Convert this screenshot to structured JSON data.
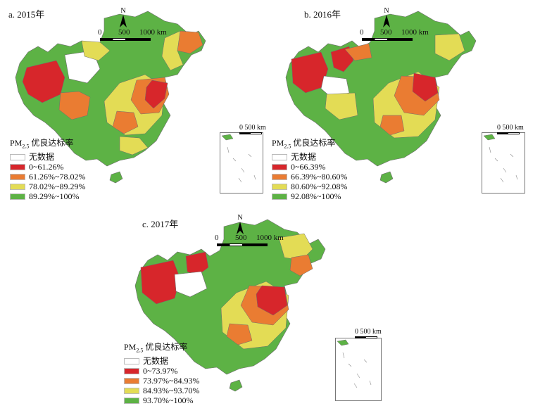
{
  "legend_title_prefix": "PM",
  "legend_title_sub": "2.5",
  "legend_title_suffix": "优良达标率",
  "north_label": "N",
  "colors": {
    "no_data": "#ffffff",
    "class1": "#d7262b",
    "class2": "#ea7c32",
    "class3": "#e3dc55",
    "class4": "#5db245",
    "boundary": "#6e6e6e"
  },
  "panels": [
    {
      "title": "a. 2015年",
      "scale": {
        "zero": "0",
        "mid": "500",
        "end": "1000 km"
      },
      "inset_scale": "0 500 km",
      "legend": [
        {
          "label": "无数据",
          "color_key": "no_data"
        },
        {
          "label": "0~61.26%",
          "color_key": "class1"
        },
        {
          "label": "61.26%~78.02%",
          "color_key": "class2"
        },
        {
          "label": "78.02%~89.29%",
          "color_key": "class3"
        },
        {
          "label": "89.29%~100%",
          "color_key": "class4"
        }
      ]
    },
    {
      "title": "b. 2016年",
      "scale": {
        "zero": "0",
        "mid": "500",
        "end": "1000 km"
      },
      "inset_scale": "0 500 km",
      "legend": [
        {
          "label": "无数据",
          "color_key": "no_data"
        },
        {
          "label": "0~66.39%",
          "color_key": "class1"
        },
        {
          "label": "66.39%~80.60%",
          "color_key": "class2"
        },
        {
          "label": "80.60%~92.08%",
          "color_key": "class3"
        },
        {
          "label": "92.08%~100%",
          "color_key": "class4"
        }
      ]
    },
    {
      "title": "c. 2017年",
      "scale": {
        "zero": "0",
        "mid": "500",
        "end": "1000 km"
      },
      "inset_scale": "0 500 km",
      "legend": [
        {
          "label": "无数据",
          "color_key": "no_data"
        },
        {
          "label": "0~73.97%",
          "color_key": "class1"
        },
        {
          "label": "73.97%~84.93%",
          "color_key": "class2"
        },
        {
          "label": "84.93%~93.70%",
          "color_key": "class3"
        },
        {
          "label": "93.70%~100%",
          "color_key": "class4"
        }
      ]
    }
  ]
}
